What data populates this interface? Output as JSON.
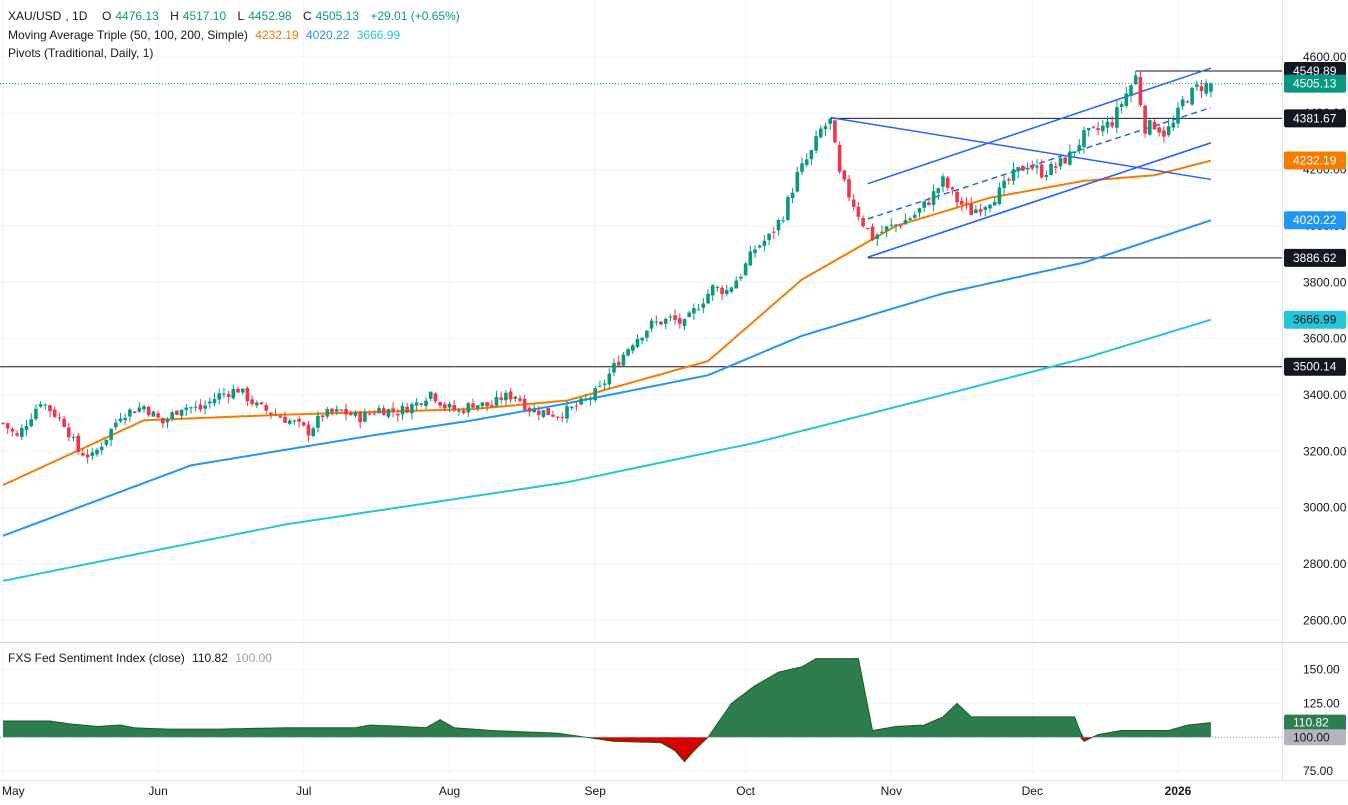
{
  "symbol": "XAU/USD",
  "interval": "1D",
  "ohlc": {
    "o_label": "O",
    "open": "4476.13",
    "h_label": "H",
    "high": "4517.10",
    "l_label": "L",
    "low": "4452.98",
    "c_label": "C",
    "close": "4505.13",
    "change": "+29.01 (+0.65%)"
  },
  "ma_study": {
    "label": "Moving Average Triple (50, 100, 200, Simple)",
    "ma50": "4232.19",
    "ma100": "4020.22",
    "ma200": "3666.99"
  },
  "pivots_label": "Pivots (Traditional, Daily, 1)",
  "sentiment": {
    "label": "FXS Fed Sentiment Index (close)",
    "value": "110.82",
    "baseline": "100.00"
  },
  "colors": {
    "up": "#089981",
    "down": "#f23645",
    "ma50": "#f57c00",
    "ma100": "#2196f3",
    "ma200": "#26c6da",
    "channel": "#2962ff",
    "sentiment_pos": "#2e7d4f",
    "sentiment_neg": "#d50000"
  },
  "chart_data": [
    {
      "type": "candlestick",
      "title": "XAU/USD, 1D",
      "y_ticks": [
        "2600.00",
        "2800.00",
        "3000.00",
        "3200.00",
        "3400.00",
        "3600.00",
        "3800.00",
        "4000.00",
        "4200.00",
        "4400.00",
        "4600.00"
      ],
      "ylim": [
        2530,
        4660
      ],
      "x_labels": [
        "May",
        "Jun",
        "Jul",
        "Aug",
        "Sep",
        "Oct",
        "Nov",
        "Dec",
        "2026"
      ],
      "price_tags": [
        {
          "value": "4549.89",
          "style": "dark"
        },
        {
          "value": "4505.13",
          "style": "green"
        },
        {
          "value": "4381.67",
          "style": "dark"
        },
        {
          "value": "4232.19",
          "style": "orange"
        },
        {
          "value": "4020.22",
          "style": "blue"
        },
        {
          "value": "3886.62",
          "style": "dark"
        },
        {
          "value": "3666.99",
          "style": "cyan"
        },
        {
          "value": "3500.14",
          "style": "dark"
        }
      ],
      "horizontal_levels": [
        3500.14,
        3886.62,
        4381.67,
        4549.89
      ],
      "last_close": 4505.13,
      "price_anchors": [
        [
          0,
          3300
        ],
        [
          3,
          3250
        ],
        [
          8,
          3380
        ],
        [
          13,
          3300
        ],
        [
          16,
          3200
        ],
        [
          19,
          3180
        ],
        [
          22,
          3250
        ],
        [
          25,
          3330
        ],
        [
          30,
          3360
        ],
        [
          34,
          3300
        ],
        [
          38,
          3360
        ],
        [
          42,
          3350
        ],
        [
          46,
          3400
        ],
        [
          50,
          3420
        ],
        [
          54,
          3360
        ],
        [
          58,
          3330
        ],
        [
          62,
          3300
        ],
        [
          65,
          3270
        ],
        [
          68,
          3330
        ],
        [
          72,
          3340
        ],
        [
          76,
          3320
        ],
        [
          80,
          3350
        ],
        [
          84,
          3340
        ],
        [
          88,
          3370
        ],
        [
          91,
          3410
        ],
        [
          94,
          3360
        ],
        [
          97,
          3340
        ],
        [
          100,
          3370
        ],
        [
          104,
          3360
        ],
        [
          106,
          3390
        ],
        [
          109,
          3400
        ],
        [
          112,
          3350
        ],
        [
          115,
          3340
        ],
        [
          118,
          3330
        ],
        [
          121,
          3350
        ],
        [
          124,
          3380
        ],
        [
          127,
          3420
        ],
        [
          130,
          3500
        ],
        [
          134,
          3590
        ],
        [
          138,
          3650
        ],
        [
          142,
          3670
        ],
        [
          145,
          3650
        ],
        [
          148,
          3720
        ],
        [
          151,
          3780
        ],
        [
          154,
          3770
        ],
        [
          157,
          3830
        ],
        [
          160,
          3920
        ],
        [
          163,
          3960
        ],
        [
          166,
          4040
        ],
        [
          169,
          4180
        ],
        [
          172,
          4260
        ],
        [
          174,
          4340
        ],
        [
          176,
          4370
        ],
        [
          178,
          4180
        ],
        [
          180,
          4110
        ],
        [
          183,
          4010
        ],
        [
          185,
          3960
        ],
        [
          188,
          3990
        ],
        [
          191,
          4010
        ],
        [
          194,
          4040
        ],
        [
          197,
          4090
        ],
        [
          200,
          4160
        ],
        [
          203,
          4090
        ],
        [
          206,
          4050
        ],
        [
          209,
          4080
        ],
        [
          212,
          4120
        ],
        [
          215,
          4180
        ],
        [
          218,
          4220
        ],
        [
          221,
          4190
        ],
        [
          224,
          4210
        ],
        [
          227,
          4250
        ],
        [
          230,
          4320
        ],
        [
          233,
          4340
        ],
        [
          236,
          4370
        ],
        [
          239,
          4470
        ],
        [
          241,
          4530
        ],
        [
          243,
          4349
        ],
        [
          245,
          4360
        ],
        [
          247,
          4330
        ],
        [
          249,
          4360
        ],
        [
          251,
          4440
        ],
        [
          254,
          4490
        ],
        [
          257,
          4505
        ]
      ],
      "ma50_anchors": [
        [
          0,
          3080
        ],
        [
          30,
          3310
        ],
        [
          60,
          3330
        ],
        [
          100,
          3350
        ],
        [
          120,
          3380
        ],
        [
          150,
          3520
        ],
        [
          170,
          3810
        ],
        [
          190,
          4000
        ],
        [
          210,
          4100
        ],
        [
          230,
          4160
        ],
        [
          245,
          4180
        ],
        [
          257,
          4232
        ]
      ],
      "ma100_anchors": [
        [
          0,
          2900
        ],
        [
          40,
          3150
        ],
        [
          80,
          3260
        ],
        [
          100,
          3310
        ],
        [
          120,
          3370
        ],
        [
          150,
          3470
        ],
        [
          170,
          3610
        ],
        [
          200,
          3760
        ],
        [
          230,
          3870
        ],
        [
          257,
          4020
        ]
      ],
      "ma200_anchors": [
        [
          0,
          2740
        ],
        [
          60,
          2940
        ],
        [
          120,
          3090
        ],
        [
          160,
          3230
        ],
        [
          200,
          3400
        ],
        [
          230,
          3530
        ],
        [
          257,
          3667
        ]
      ]
    },
    {
      "type": "area",
      "title": "FXS Fed Sentiment Index (close)",
      "y_ticks": [
        "75.00",
        "100.00",
        "125.00",
        "150.00"
      ],
      "ylim": [
        70,
        168
      ],
      "baseline": 100,
      "last_value": 110.82,
      "series_anchors": [
        [
          0,
          112
        ],
        [
          10,
          112
        ],
        [
          14,
          110
        ],
        [
          20,
          108
        ],
        [
          25,
          109
        ],
        [
          28,
          107
        ],
        [
          35,
          106
        ],
        [
          45,
          106
        ],
        [
          60,
          107
        ],
        [
          75,
          107
        ],
        [
          78,
          109
        ],
        [
          85,
          108
        ],
        [
          90,
          107
        ],
        [
          93,
          113
        ],
        [
          96,
          107
        ],
        [
          104,
          105
        ],
        [
          118,
          103
        ],
        [
          124,
          100
        ],
        [
          130,
          97
        ],
        [
          140,
          96
        ],
        [
          143,
          90
        ],
        [
          145,
          82
        ],
        [
          147,
          90
        ],
        [
          150,
          100
        ],
        [
          155,
          125
        ],
        [
          160,
          138
        ],
        [
          165,
          148
        ],
        [
          170,
          152
        ],
        [
          173,
          158
        ],
        [
          177,
          158
        ],
        [
          182,
          158
        ],
        [
          185,
          105
        ],
        [
          190,
          108
        ],
        [
          196,
          109
        ],
        [
          200,
          115
        ],
        [
          203,
          125
        ],
        [
          206,
          115
        ],
        [
          215,
          115
        ],
        [
          228,
          115
        ],
        [
          230,
          97
        ],
        [
          233,
          102
        ],
        [
          238,
          105
        ],
        [
          248,
          105
        ],
        [
          252,
          109
        ],
        [
          257,
          110.82
        ]
      ]
    }
  ]
}
